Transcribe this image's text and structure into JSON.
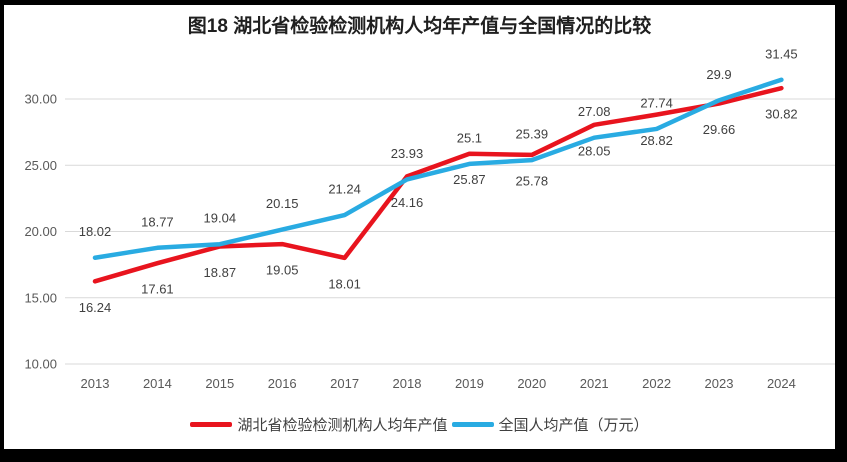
{
  "chart_data": {
    "type": "line",
    "title": "图18 湖北省检验检测机构人均年产值与全国情况的比较",
    "categories": [
      "2013",
      "2014",
      "2015",
      "2016",
      "2017",
      "2018",
      "2019",
      "2020",
      "2021",
      "2022",
      "2023",
      "2024"
    ],
    "series": [
      {
        "key": "hubei",
        "name": "湖北省检验检测机构人均年产值",
        "color": "#e8141e",
        "label_position": "below",
        "values": [
          16.24,
          17.61,
          18.87,
          19.05,
          18.01,
          24.16,
          25.87,
          25.78,
          28.05,
          28.82,
          29.66,
          30.82
        ]
      },
      {
        "key": "national",
        "name": "全国人均产值（万元）",
        "color": "#29abe2",
        "label_position": "above",
        "values": [
          18.02,
          18.77,
          19.04,
          20.15,
          21.24,
          23.93,
          25.1,
          25.39,
          27.08,
          27.74,
          29.9,
          31.45
        ]
      }
    ],
    "ylim": [
      10,
      32.5
    ],
    "yticks": [
      10,
      15,
      20,
      25,
      30
    ],
    "ytick_labels": [
      "10.00",
      "15.00",
      "20.00",
      "25.00",
      "30.00"
    ],
    "grid": true,
    "legend_position": "bottom"
  },
  "colors": {
    "grid": "#d9d9d9",
    "axis_text": "#595959",
    "data_label_text": "#404040",
    "title_text": "#1f1f1f",
    "frame": "#000000",
    "background": "#ffffff"
  }
}
